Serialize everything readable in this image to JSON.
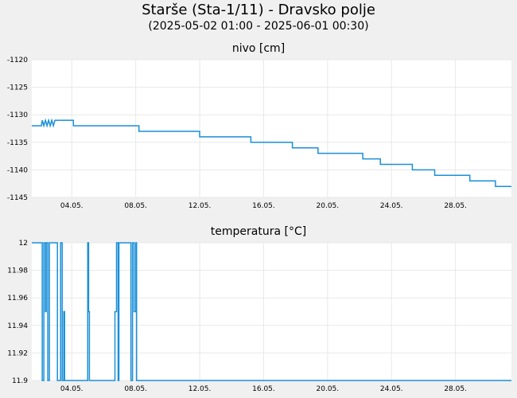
{
  "header": {
    "title": "Starše (Sta-1/11) - Dravsko polje",
    "subtitle": "(2025-05-02 01:00 - 2025-06-01 00:30)"
  },
  "colors": {
    "line": "#1a8fd8",
    "grid": "#e8e8e8",
    "plot_bg": "#ffffff",
    "page_bg": "#f0f0f0"
  },
  "chart_data": [
    {
      "type": "line",
      "title": "nivo [cm]",
      "x_range": [
        1.5,
        31.5
      ],
      "ylim": [
        -1145,
        -1120
      ],
      "yticks": [
        -1120,
        -1125,
        -1130,
        -1135,
        -1140,
        -1145
      ],
      "xticks": [
        4,
        8,
        12,
        16,
        20,
        24,
        28
      ],
      "xtick_labels": [
        "04.05.",
        "08.05.",
        "12.05.",
        "16.05.",
        "20.05.",
        "24.05.",
        "28.05."
      ],
      "grid": true,
      "step_points": [
        [
          1.5,
          -1132
        ],
        [
          2.1,
          -1132
        ],
        [
          2.15,
          -1131
        ],
        [
          2.25,
          -1132
        ],
        [
          2.35,
          -1131
        ],
        [
          2.45,
          -1132
        ],
        [
          2.55,
          -1131
        ],
        [
          2.65,
          -1132
        ],
        [
          2.75,
          -1131
        ],
        [
          2.85,
          -1132
        ],
        [
          2.95,
          -1131
        ],
        [
          4.1,
          -1131
        ],
        [
          4.1,
          -1132
        ],
        [
          8.2,
          -1132
        ],
        [
          8.2,
          -1133
        ],
        [
          12.0,
          -1133
        ],
        [
          12.0,
          -1134
        ],
        [
          15.2,
          -1134
        ],
        [
          15.2,
          -1135
        ],
        [
          17.8,
          -1135
        ],
        [
          17.8,
          -1136
        ],
        [
          19.4,
          -1136
        ],
        [
          19.4,
          -1137
        ],
        [
          21.75,
          -1137
        ],
        [
          21.75,
          -1137
        ],
        [
          22.2,
          -1137
        ],
        [
          22.2,
          -1138
        ],
        [
          23.3,
          -1138
        ],
        [
          23.3,
          -1139
        ],
        [
          25.3,
          -1139
        ],
        [
          25.3,
          -1140
        ],
        [
          26.7,
          -1140
        ],
        [
          26.7,
          -1141
        ],
        [
          28.9,
          -1141
        ],
        [
          28.9,
          -1142
        ],
        [
          30.5,
          -1142
        ],
        [
          30.5,
          -1143
        ],
        [
          31.5,
          -1143
        ]
      ]
    },
    {
      "type": "line",
      "title": "temperatura [°C]",
      "x_range": [
        1.5,
        31.5
      ],
      "ylim": [
        11.9,
        12.0
      ],
      "yticks": [
        12,
        11.98,
        11.96,
        11.94,
        11.92,
        11.9
      ],
      "xticks": [
        4,
        8,
        12,
        16,
        20,
        24,
        28
      ],
      "xtick_labels": [
        "04.05.",
        "08.05.",
        "12.05.",
        "16.05.",
        "20.05.",
        "24.05.",
        "28.05."
      ],
      "grid": true,
      "step_points": [
        [
          1.5,
          12.0
        ],
        [
          2.15,
          12.0
        ],
        [
          2.15,
          11.9
        ],
        [
          2.25,
          11.9
        ],
        [
          2.25,
          12.0
        ],
        [
          2.35,
          12.0
        ],
        [
          2.35,
          11.95
        ],
        [
          2.4,
          11.95
        ],
        [
          2.4,
          12.0
        ],
        [
          2.5,
          12.0
        ],
        [
          2.5,
          11.9
        ],
        [
          2.6,
          11.9
        ],
        [
          2.6,
          12.0
        ],
        [
          3.1,
          12.0
        ],
        [
          3.1,
          11.9
        ],
        [
          3.3,
          11.9
        ],
        [
          3.3,
          12.0
        ],
        [
          3.4,
          12.0
        ],
        [
          3.4,
          11.9
        ],
        [
          3.5,
          11.9
        ],
        [
          3.5,
          11.95
        ],
        [
          3.55,
          11.95
        ],
        [
          3.55,
          11.9
        ],
        [
          5.0,
          11.9
        ],
        [
          5.0,
          12.0
        ],
        [
          5.05,
          12.0
        ],
        [
          5.05,
          11.95
        ],
        [
          5.1,
          11.95
        ],
        [
          5.1,
          11.9
        ],
        [
          6.7,
          11.9
        ],
        [
          6.7,
          11.95
        ],
        [
          6.8,
          11.95
        ],
        [
          6.8,
          12.0
        ],
        [
          6.9,
          12.0
        ],
        [
          6.9,
          11.9
        ],
        [
          6.95,
          11.9
        ],
        [
          6.95,
          12.0
        ],
        [
          7.7,
          12.0
        ],
        [
          7.7,
          11.9
        ],
        [
          7.8,
          11.9
        ],
        [
          7.8,
          12.0
        ],
        [
          7.9,
          12.0
        ],
        [
          7.9,
          11.95
        ],
        [
          8.0,
          11.95
        ],
        [
          8.0,
          12.0
        ],
        [
          8.05,
          12.0
        ],
        [
          8.05,
          11.9
        ],
        [
          31.5,
          11.9
        ]
      ]
    }
  ]
}
